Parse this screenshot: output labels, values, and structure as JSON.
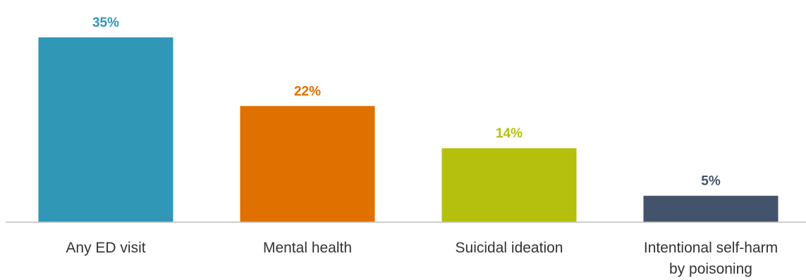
{
  "chart_data": {
    "type": "bar",
    "title": "",
    "xlabel": "",
    "ylabel": "",
    "ylim": [
      0,
      35
    ],
    "grid": false,
    "legend": "none",
    "categories": [
      [
        "Any ED visit"
      ],
      [
        "Mental health"
      ],
      [
        "Suicidal ideation"
      ],
      [
        "Intentional self-harm",
        "by poisoning"
      ]
    ],
    "values": [
      35,
      22,
      14,
      5
    ],
    "value_labels": [
      "35%",
      "22%",
      "14%",
      "5%"
    ],
    "bar_colors": [
      "#3097B7",
      "#E07000",
      "#B5BF0E",
      "#43536B"
    ],
    "axis_color": "#BFBFBF"
  }
}
